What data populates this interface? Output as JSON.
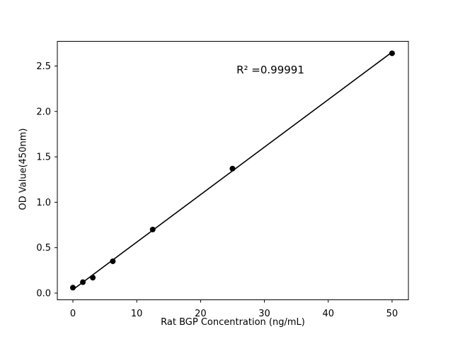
{
  "figure": {
    "background": "#ffffff"
  },
  "chart_data": {
    "type": "scatter",
    "title": "",
    "xlabel": "Rat BGP Concentration (ng/mL)",
    "ylabel": "OD Value(450nm)",
    "annotation": "R² =0.99991",
    "r_squared": 0.99991,
    "x": [
      0,
      1.56,
      3.12,
      6.25,
      12.5,
      25,
      50
    ],
    "y": [
      0.06,
      0.12,
      0.17,
      0.35,
      0.7,
      1.37,
      2.64
    ],
    "fit_line": {
      "slope": 0.0523,
      "intercept": 0.038,
      "x_start": 0,
      "x_end": 50
    },
    "x_ticks": [
      0,
      10,
      20,
      30,
      40,
      50
    ],
    "x_tick_labels": [
      "0",
      "10",
      "20",
      "30",
      "40",
      "50"
    ],
    "y_ticks": [
      0,
      0.5,
      1,
      1.5,
      2,
      2.5
    ],
    "y_tick_labels": [
      "0.0",
      "0.5",
      "1.0",
      "1.5",
      "2.0",
      "2.5"
    ],
    "xlim": [
      -2.44,
      52.56
    ],
    "ylim": [
      -0.074,
      2.772
    ],
    "grid": false,
    "legend": "none",
    "marker_color": "#000000",
    "line_color": "#000000",
    "axis_color": "#000000"
  }
}
